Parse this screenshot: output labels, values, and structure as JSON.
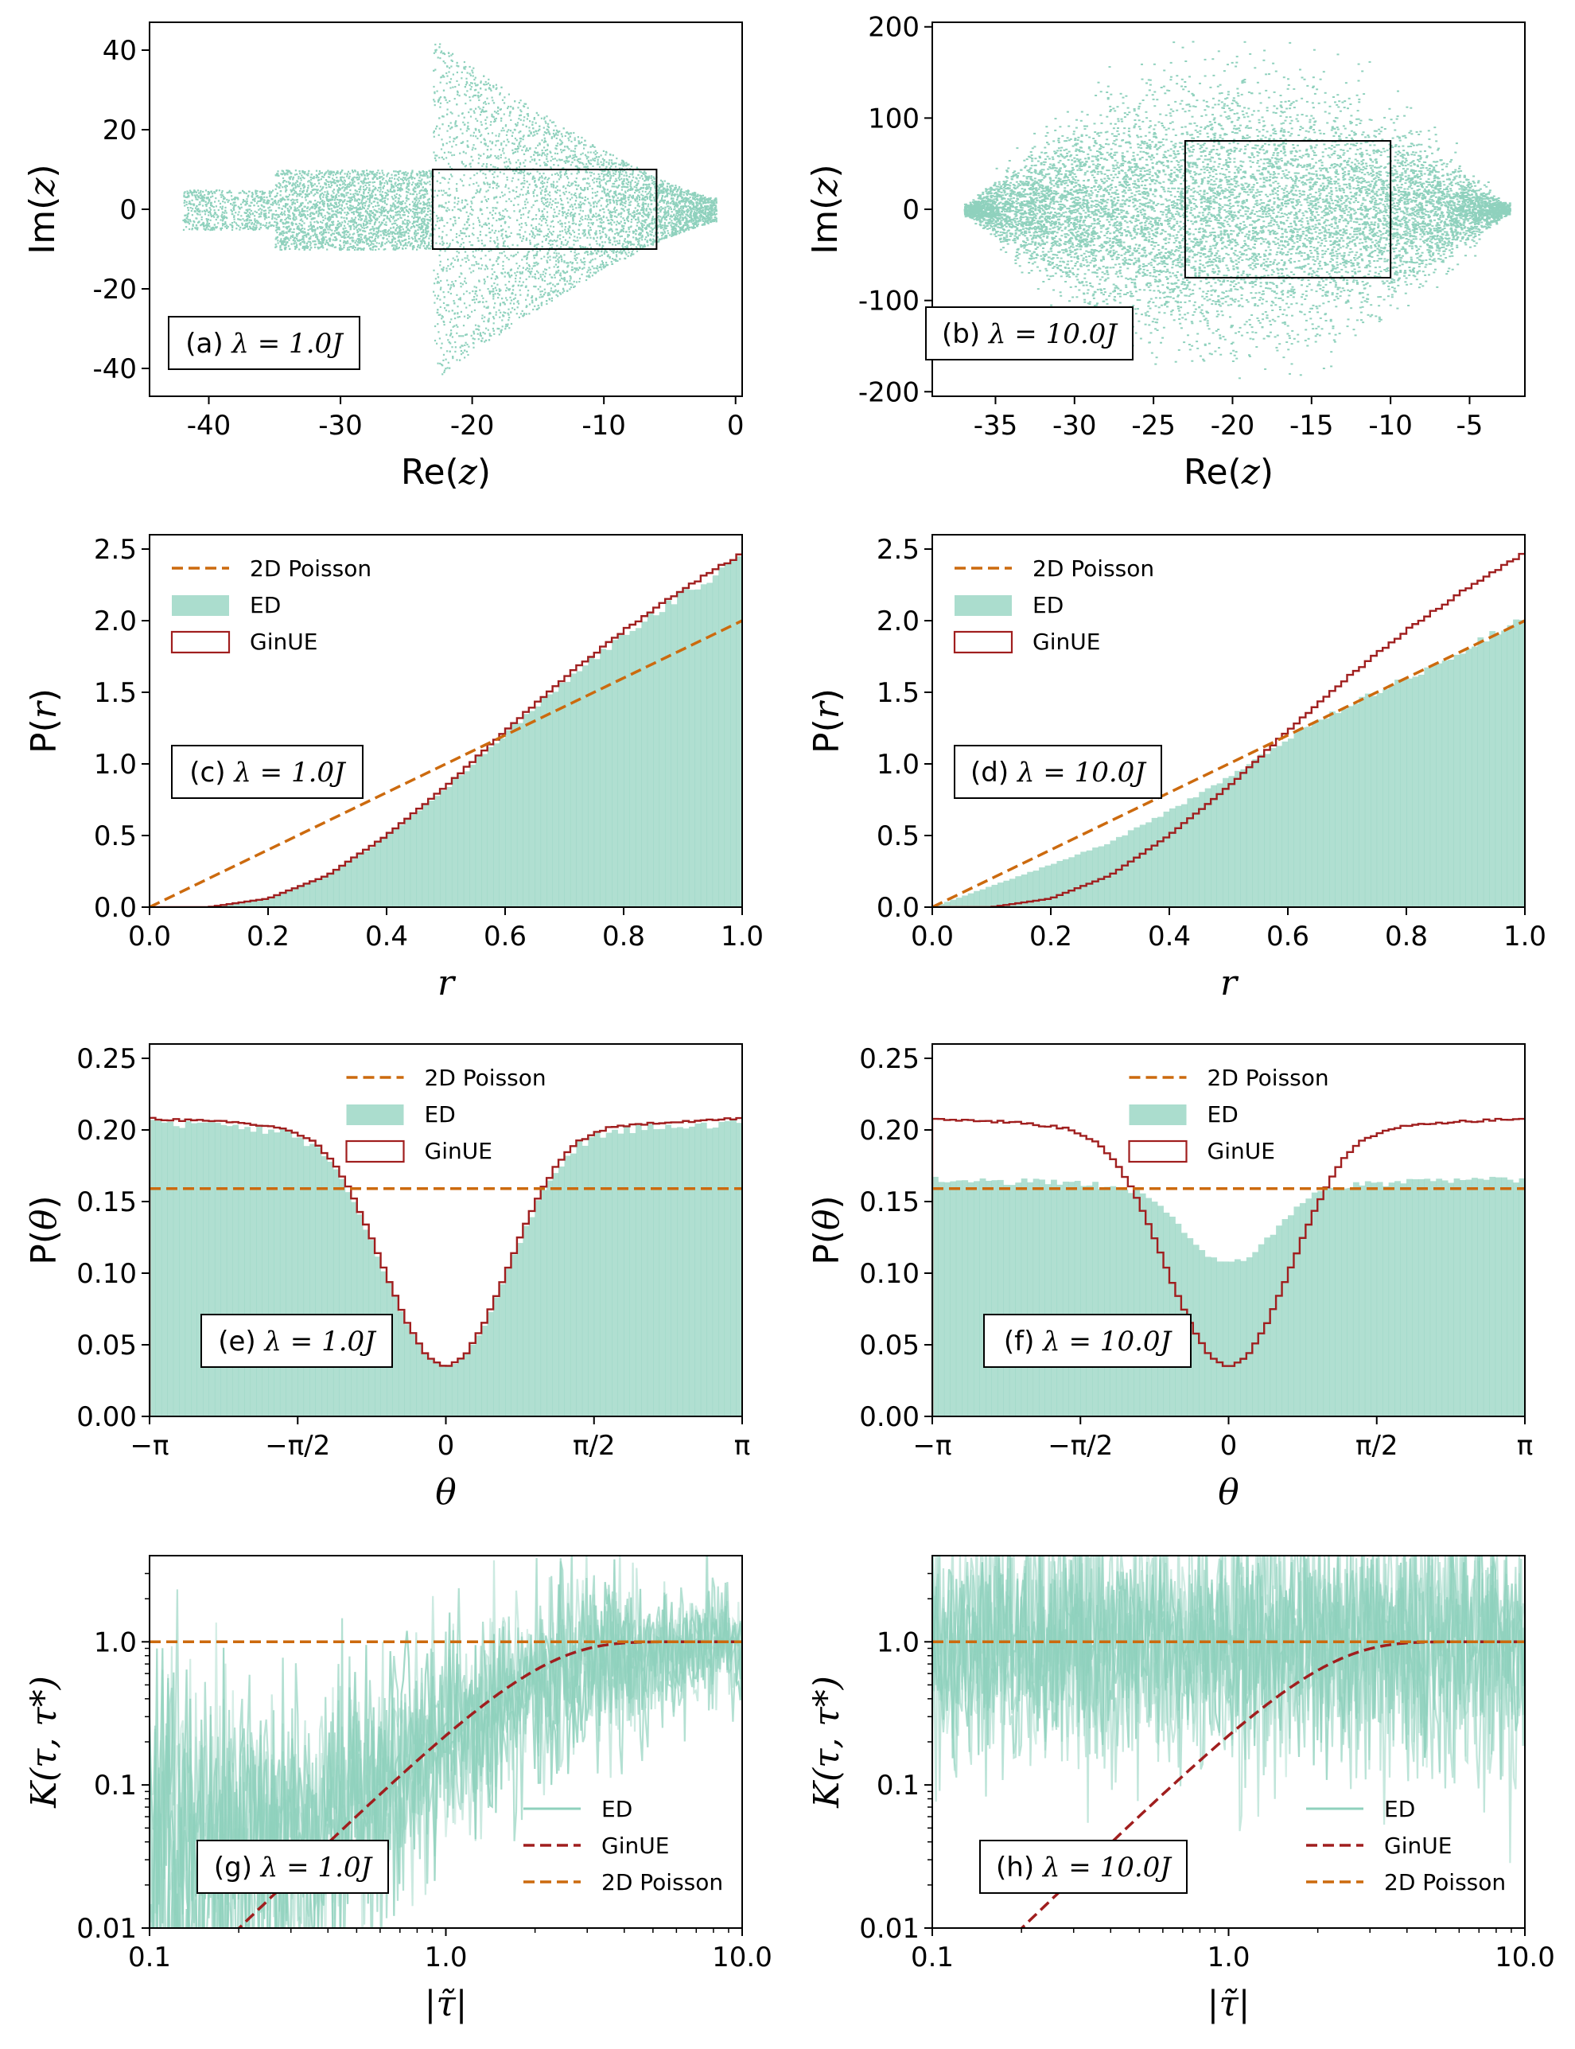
{
  "chart_data": [
    {
      "id": "a",
      "type": "scatter",
      "label_prefix": "(a) ",
      "label_math": "λ = 1.0J",
      "xlabel_prefix": "Re(",
      "xlabel_var": "z",
      "xlabel_suffix": ")",
      "ylabel_prefix": "Im(",
      "ylabel_var": "z",
      "ylabel_suffix": ")",
      "xlim": [
        -44.5,
        0.5
      ],
      "ylim": [
        -47,
        47
      ],
      "xticks": [
        -40,
        -30,
        -20,
        -10,
        0
      ],
      "xticklabels": [
        "-40",
        "-30",
        "-20",
        "-10",
        "0"
      ],
      "yticks": [
        -40,
        -20,
        0,
        20,
        40
      ],
      "yticklabels": [
        "-40",
        "-20",
        "0",
        "20",
        "40"
      ],
      "window": {
        "x": [
          -23,
          -6
        ],
        "y": [
          -10,
          10
        ]
      },
      "cloud": {
        "left_tail_x": -42,
        "body_start_x": -35,
        "neck_x": -23,
        "right_x": -1.5,
        "tail_halfwidth": 5,
        "body_halfwidth": 10,
        "neck_halfwidth": 40
      },
      "color": "#8fd1bd"
    },
    {
      "id": "b",
      "type": "scatter",
      "label_prefix": "(b) ",
      "label_math": "λ = 10.0J",
      "xlabel_prefix": "Re(",
      "xlabel_var": "z",
      "xlabel_suffix": ")",
      "ylabel_prefix": "Im(",
      "ylabel_var": "z",
      "ylabel_suffix": ")",
      "xlim": [
        -39,
        -1.5
      ],
      "ylim": [
        -205,
        205
      ],
      "xticks": [
        -35,
        -30,
        -25,
        -20,
        -15,
        -10,
        -5
      ],
      "xticklabels": [
        "-35",
        "-30",
        "-25",
        "-20",
        "-15",
        "-10",
        "-5"
      ],
      "yticks": [
        -200,
        -100,
        0,
        100,
        200
      ],
      "yticklabels": [
        "-200",
        "-100",
        "0",
        "100",
        "200"
      ],
      "window": {
        "x": [
          -23,
          -10
        ],
        "y": [
          -75,
          75
        ]
      },
      "cloud": {
        "left_x": -37,
        "center_x": -20,
        "right_x": -2.5,
        "max_halfwidth": 185
      },
      "color": "#8fd1bd"
    },
    {
      "id": "c",
      "type": "histogram",
      "label_prefix": "(c) ",
      "label_math": "λ = 1.0J",
      "xlabel_var": "r",
      "ylabel_prefix": "P(",
      "ylabel_var": "r",
      "ylabel_suffix": ")",
      "xlim": [
        0,
        1
      ],
      "ylim": [
        0,
        2.6
      ],
      "xticks": [
        0,
        0.2,
        0.4,
        0.6,
        0.8,
        1.0
      ],
      "xticklabels": [
        "0.0",
        "0.2",
        "0.4",
        "0.6",
        "0.8",
        "1.0"
      ],
      "yticks": [
        0,
        0.5,
        1.0,
        1.5,
        2.0,
        2.5
      ],
      "yticklabels": [
        "0.0",
        "0.5",
        "1.0",
        "1.5",
        "2.0",
        "2.5"
      ],
      "bins": 100,
      "series": [
        {
          "name": "2D Poisson",
          "kind": "dashed-line",
          "formula": "P(r) = 2r",
          "color": "#cc6a0e"
        },
        {
          "name": "ED",
          "kind": "bars",
          "matches": "GinUE",
          "color": "#8fd1bd"
        },
        {
          "name": "GinUE",
          "kind": "step",
          "anchors": [
            [
              0.0,
              0.0
            ],
            [
              0.1,
              0.0
            ],
            [
              0.2,
              0.06
            ],
            [
              0.3,
              0.22
            ],
            [
              0.4,
              0.5
            ],
            [
              0.5,
              0.84
            ],
            [
              0.6,
              1.23
            ],
            [
              0.7,
              1.6
            ],
            [
              0.8,
              1.93
            ],
            [
              0.9,
              2.22
            ],
            [
              1.0,
              2.47
            ]
          ],
          "color": "#a01e1e"
        }
      ],
      "legend": [
        "2D Poisson",
        "ED",
        "GinUE"
      ],
      "legend_loc": "upper-left"
    },
    {
      "id": "d",
      "type": "histogram",
      "label_prefix": "(d) ",
      "label_math": "λ = 10.0J",
      "xlabel_var": "r",
      "ylabel_prefix": "P(",
      "ylabel_var": "r",
      "ylabel_suffix": ")",
      "xlim": [
        0,
        1
      ],
      "ylim": [
        0,
        2.6
      ],
      "xticks": [
        0,
        0.2,
        0.4,
        0.6,
        0.8,
        1.0
      ],
      "xticklabels": [
        "0.0",
        "0.2",
        "0.4",
        "0.6",
        "0.8",
        "1.0"
      ],
      "yticks": [
        0,
        0.5,
        1.0,
        1.5,
        2.0,
        2.5
      ],
      "yticklabels": [
        "0.0",
        "0.5",
        "1.0",
        "1.5",
        "2.0",
        "2.5"
      ],
      "bins": 100,
      "series": [
        {
          "name": "2D Poisson",
          "kind": "dashed-line",
          "formula": "P(r) = 2r",
          "color": "#cc6a0e"
        },
        {
          "name": "ED",
          "kind": "bars",
          "anchors": [
            [
              0.0,
              0.0
            ],
            [
              0.1,
              0.15
            ],
            [
              0.2,
              0.3
            ],
            [
              0.3,
              0.46
            ],
            [
              0.4,
              0.68
            ],
            [
              0.5,
              0.92
            ],
            [
              0.6,
              1.2
            ],
            [
              0.7,
              1.43
            ],
            [
              0.8,
              1.62
            ],
            [
              0.9,
              1.83
            ],
            [
              1.0,
              2.05
            ]
          ],
          "color": "#8fd1bd"
        },
        {
          "name": "GinUE",
          "kind": "step",
          "anchors": [
            [
              0.0,
              0.0
            ],
            [
              0.1,
              0.0
            ],
            [
              0.2,
              0.06
            ],
            [
              0.3,
              0.22
            ],
            [
              0.4,
              0.5
            ],
            [
              0.5,
              0.84
            ],
            [
              0.6,
              1.23
            ],
            [
              0.7,
              1.6
            ],
            [
              0.8,
              1.93
            ],
            [
              0.9,
              2.22
            ],
            [
              1.0,
              2.47
            ]
          ],
          "color": "#a01e1e"
        }
      ],
      "legend": [
        "2D Poisson",
        "ED",
        "GinUE"
      ],
      "legend_loc": "upper-left"
    },
    {
      "id": "e",
      "type": "histogram",
      "label_prefix": "(e) ",
      "label_math": "λ = 1.0J",
      "xlabel_var": "θ",
      "ylabel_prefix": "P(",
      "ylabel_var": "θ",
      "ylabel_suffix": ")",
      "xlim": [
        -3.14159,
        3.14159
      ],
      "ylim": [
        0,
        0.26
      ],
      "xticks": [
        -3.14159,
        -1.5708,
        0,
        1.5708,
        3.14159
      ],
      "xticklabels": [
        "−π",
        "−π/2",
        "0",
        "π/2",
        "π"
      ],
      "yticks": [
        0,
        0.05,
        0.1,
        0.15,
        0.2,
        0.25
      ],
      "yticklabels": [
        "0.00",
        "0.05",
        "0.10",
        "0.15",
        "0.20",
        "0.25"
      ],
      "bins": 100,
      "series": [
        {
          "name": "2D Poisson",
          "kind": "dashed-line",
          "value": 0.159,
          "color": "#cc6a0e"
        },
        {
          "name": "ED",
          "kind": "bars",
          "matches": "GinUE",
          "color": "#8fd1bd"
        },
        {
          "name": "GinUE",
          "kind": "step",
          "anchors": [
            [
              0.0,
              0.034
            ],
            [
              0.2,
              0.042
            ],
            [
              0.4,
              0.064
            ],
            [
              0.6,
              0.094
            ],
            [
              0.8,
              0.127
            ],
            [
              1.0,
              0.156
            ],
            [
              1.2,
              0.178
            ],
            [
              1.4,
              0.192
            ],
            [
              1.7,
              0.201
            ],
            [
              2.2,
              0.205
            ],
            [
              3.14159,
              0.208
            ]
          ],
          "symmetric": true,
          "color": "#a01e1e"
        }
      ],
      "legend": [
        "2D Poisson",
        "ED",
        "GinUE"
      ],
      "legend_loc": "upper-center"
    },
    {
      "id": "f",
      "type": "histogram",
      "label_prefix": "(f) ",
      "label_math": "λ = 10.0J",
      "xlabel_var": "θ",
      "ylabel_prefix": "P(",
      "ylabel_var": "θ",
      "ylabel_suffix": ")",
      "xlim": [
        -3.14159,
        3.14159
      ],
      "ylim": [
        0,
        0.26
      ],
      "xticks": [
        -3.14159,
        -1.5708,
        0,
        1.5708,
        3.14159
      ],
      "xticklabels": [
        "−π",
        "−π/2",
        "0",
        "π/2",
        "π"
      ],
      "yticks": [
        0,
        0.05,
        0.1,
        0.15,
        0.2,
        0.25
      ],
      "yticklabels": [
        "0.00",
        "0.05",
        "0.10",
        "0.15",
        "0.20",
        "0.25"
      ],
      "bins": 100,
      "series": [
        {
          "name": "2D Poisson",
          "kind": "dashed-line",
          "value": 0.159,
          "color": "#cc6a0e"
        },
        {
          "name": "ED",
          "kind": "bars",
          "anchors": [
            [
              0.0,
              0.11
            ],
            [
              0.2,
              0.112
            ],
            [
              0.4,
              0.125
            ],
            [
              0.6,
              0.14
            ],
            [
              0.8,
              0.152
            ],
            [
              1.0,
              0.16
            ],
            [
              1.5,
              0.165
            ],
            [
              2.0,
              0.166
            ],
            [
              3.14159,
              0.168
            ]
          ],
          "symmetric": true,
          "color": "#8fd1bd"
        },
        {
          "name": "GinUE",
          "kind": "step",
          "anchors": [
            [
              0.0,
              0.034
            ],
            [
              0.2,
              0.042
            ],
            [
              0.4,
              0.064
            ],
            [
              0.6,
              0.094
            ],
            [
              0.8,
              0.127
            ],
            [
              1.0,
              0.156
            ],
            [
              1.2,
              0.178
            ],
            [
              1.4,
              0.192
            ],
            [
              1.7,
              0.201
            ],
            [
              2.2,
              0.205
            ],
            [
              3.14159,
              0.208
            ]
          ],
          "symmetric": true,
          "color": "#a01e1e"
        }
      ],
      "legend": [
        "2D Poisson",
        "ED",
        "GinUE"
      ],
      "legend_loc": "upper-center"
    },
    {
      "id": "g",
      "type": "line",
      "scale": "log-log",
      "label_prefix": "(g) ",
      "label_math": "λ = 1.0J",
      "xlabel_var": "|τ̃|",
      "ylabel_var": "K(τ, τ*)",
      "xlim": [
        0.1,
        10
      ],
      "ylim": [
        0.01,
        4
      ],
      "xticks": [
        0.1,
        1,
        10
      ],
      "xticklabels": [
        "0.1",
        "1.0",
        "10.0"
      ],
      "yticks": [
        0.01,
        0.1,
        1
      ],
      "yticklabels": [
        "0.01",
        "0.1",
        "1.0"
      ],
      "series": [
        {
          "name": "ED",
          "kind": "noisy-curves",
          "count": 8,
          "trend": [
            [
              0.1,
              0.02
            ],
            [
              0.3,
              0.04
            ],
            [
              1.0,
              0.2
            ],
            [
              2.0,
              0.5
            ],
            [
              4.0,
              0.85
            ],
            [
              10.0,
              1.0
            ]
          ],
          "color": "#8fd1bd"
        },
        {
          "name": "GinUE",
          "kind": "dashed-line",
          "formula": "1 - exp(-τ²/4)",
          "color": "#a01e1e"
        },
        {
          "name": "2D Poisson",
          "kind": "dashed-line",
          "value": 1.0,
          "color": "#cc6a0e"
        }
      ],
      "legend": [
        "ED",
        "GinUE",
        "2D Poisson"
      ],
      "legend_loc": "lower-right"
    },
    {
      "id": "h",
      "type": "line",
      "scale": "log-log",
      "label_prefix": "(h) ",
      "label_math": "λ = 10.0J",
      "xlabel_var": "|τ̃|",
      "ylabel_var": "K(τ, τ*)",
      "xlim": [
        0.1,
        10
      ],
      "ylim": [
        0.01,
        4
      ],
      "xticks": [
        0.1,
        1,
        10
      ],
      "xticklabels": [
        "0.1",
        "1.0",
        "10.0"
      ],
      "yticks": [
        0.01,
        0.1,
        1
      ],
      "yticklabels": [
        "0.01",
        "0.1",
        "1.0"
      ],
      "series": [
        {
          "name": "ED",
          "kind": "noisy-curves",
          "count": 8,
          "trend": [
            [
              0.1,
              1.0
            ],
            [
              10.0,
              1.0
            ]
          ],
          "color": "#8fd1bd"
        },
        {
          "name": "GinUE",
          "kind": "dashed-line",
          "formula": "1 - exp(-τ²/4)",
          "color": "#a01e1e"
        },
        {
          "name": "2D Poisson",
          "kind": "dashed-line",
          "value": 1.0,
          "color": "#cc6a0e"
        }
      ],
      "legend": [
        "ED",
        "GinUE",
        "2D Poisson"
      ],
      "legend_loc": "lower-right"
    }
  ]
}
